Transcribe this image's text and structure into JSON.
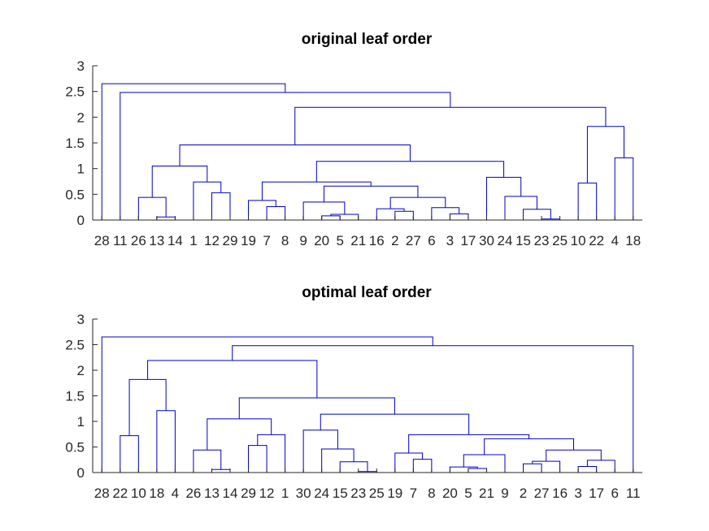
{
  "chart_data": [
    {
      "type": "dendrogram",
      "title": "original leaf order",
      "ylim": [
        0,
        3
      ],
      "yticks": [
        "0",
        "0.5",
        "1",
        "1.5",
        "2",
        "2.5",
        "3"
      ],
      "leaves": [
        "28",
        "11",
        "26",
        "13",
        "14",
        "1",
        "12",
        "29",
        "19",
        "7",
        "8",
        "9",
        "20",
        "5",
        "21",
        "16",
        "2",
        "27",
        "6",
        "3",
        "17",
        "30",
        "24",
        "15",
        "23",
        "25",
        "10",
        "22",
        "4",
        "18"
      ],
      "links": [
        [
          0.06,
          0.06,
          14,
          13
        ],
        [
          0.44,
          0.44,
          26,
          14
        ],
        [
          0.53,
          0.53,
          12,
          29
        ],
        [
          0.74,
          0.74,
          1,
          12
        ],
        [
          1.05,
          1.05,
          26,
          1
        ],
        [
          0.26,
          0.26,
          7,
          8
        ],
        [
          0.38,
          0.38,
          19,
          7
        ],
        [
          0.08,
          0.08,
          20,
          5
        ],
        [
          0.11,
          0.11,
          20,
          21
        ],
        [
          0.35,
          0.35,
          9,
          20
        ],
        [
          0.17,
          0.17,
          2,
          27
        ],
        [
          0.22,
          0.22,
          16,
          2
        ],
        [
          0.12,
          0.12,
          3,
          17
        ],
        [
          0.24,
          0.24,
          6,
          3
        ],
        [
          0.44,
          0.44,
          16,
          6
        ],
        [
          0.66,
          0.66,
          9,
          16
        ],
        [
          0.74,
          0.74,
          19,
          9
        ],
        [
          0.02,
          0.02,
          23,
          25
        ],
        [
          0.21,
          0.21,
          15,
          23
        ],
        [
          0.46,
          0.46,
          24,
          15
        ],
        [
          0.83,
          0.83,
          30,
          24
        ],
        [
          1.14,
          1.14,
          19,
          30
        ],
        [
          1.46,
          1.46,
          26,
          19
        ],
        [
          0.72,
          0.72,
          10,
          22
        ],
        [
          1.21,
          1.21,
          4,
          18
        ],
        [
          1.82,
          1.82,
          10,
          4
        ],
        [
          2.19,
          2.19,
          26,
          10
        ],
        [
          2.48,
          2.48,
          11,
          26
        ],
        [
          2.65,
          2.65,
          28,
          11
        ]
      ]
    },
    {
      "type": "dendrogram",
      "title": "optimal leaf order",
      "ylim": [
        0,
        3
      ],
      "yticks": [
        "0",
        "0.5",
        "1",
        "1.5",
        "2",
        "2.5",
        "3"
      ],
      "leaves": [
        "28",
        "22",
        "10",
        "18",
        "4",
        "26",
        "13",
        "14",
        "29",
        "12",
        "1",
        "30",
        "24",
        "15",
        "23",
        "25",
        "19",
        "7",
        "8",
        "20",
        "5",
        "21",
        "9",
        "2",
        "27",
        "16",
        "3",
        "17",
        "6",
        "11"
      ],
      "links": [
        [
          0.72,
          0.72,
          22,
          10
        ],
        [
          1.21,
          1.21,
          18,
          4
        ],
        [
          1.82,
          1.82,
          22,
          18
        ],
        [
          0.06,
          0.06,
          13,
          14
        ],
        [
          0.44,
          0.44,
          26,
          13
        ],
        [
          0.53,
          0.53,
          29,
          12
        ],
        [
          0.74,
          0.74,
          29,
          1
        ],
        [
          1.05,
          1.05,
          26,
          29
        ],
        [
          0.02,
          0.02,
          23,
          25
        ],
        [
          0.21,
          0.21,
          15,
          23
        ],
        [
          0.46,
          0.46,
          24,
          15
        ],
        [
          0.83,
          0.83,
          30,
          24
        ],
        [
          0.26,
          0.26,
          7,
          8
        ],
        [
          0.38,
          0.38,
          19,
          7
        ],
        [
          0.08,
          0.08,
          5,
          21
        ],
        [
          0.11,
          0.11,
          20,
          5
        ],
        [
          0.35,
          0.35,
          20,
          9
        ],
        [
          0.17,
          0.17,
          2,
          27
        ],
        [
          0.22,
          0.22,
          2,
          16
        ],
        [
          0.12,
          0.12,
          3,
          17
        ],
        [
          0.24,
          0.24,
          3,
          6
        ],
        [
          0.44,
          0.44,
          2,
          3
        ],
        [
          0.66,
          0.66,
          20,
          2
        ],
        [
          0.74,
          0.74,
          19,
          20
        ],
        [
          1.14,
          1.14,
          30,
          19
        ],
        [
          1.46,
          1.46,
          26,
          30
        ],
        [
          2.19,
          2.19,
          22,
          26
        ],
        [
          2.48,
          2.48,
          22,
          11
        ],
        [
          2.65,
          2.65,
          28,
          22
        ]
      ]
    }
  ]
}
